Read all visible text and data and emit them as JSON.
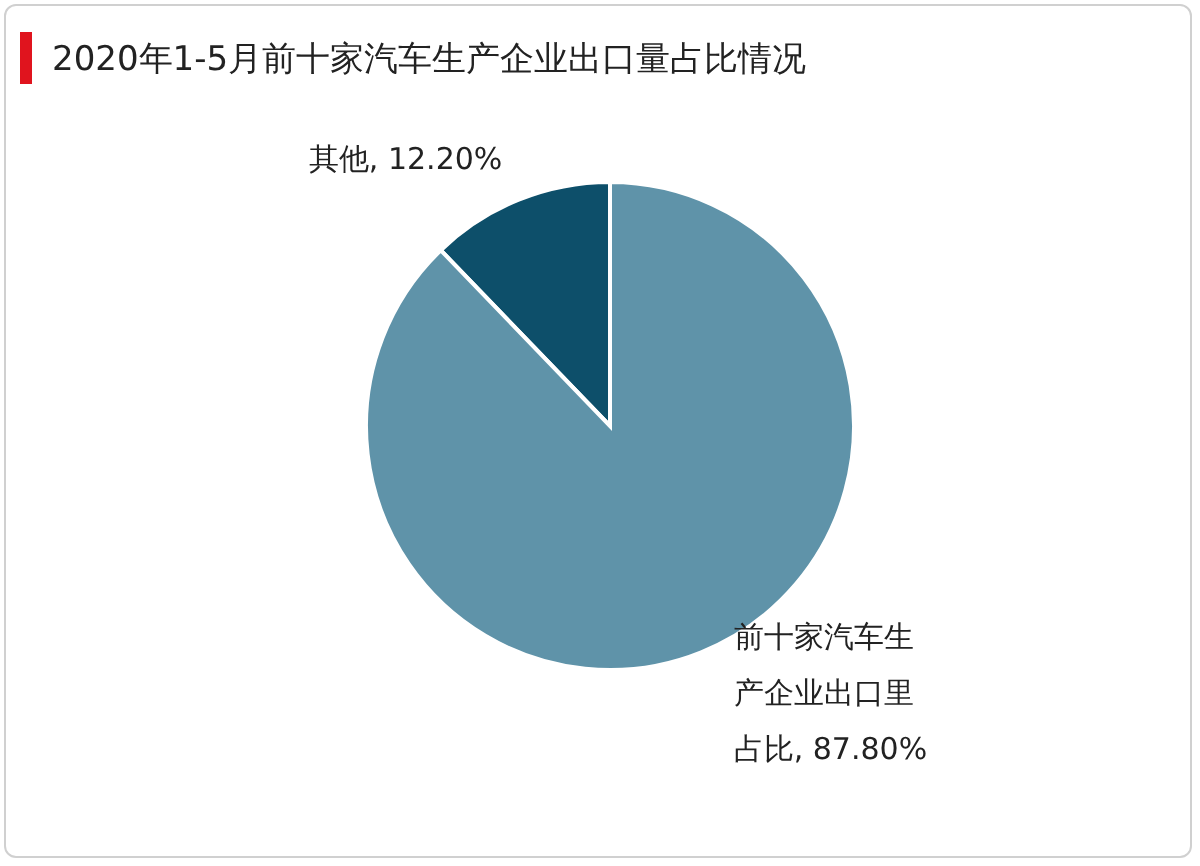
{
  "chart_data": {
    "type": "pie",
    "title": "2020年1-5月前十家汽车生产企业出口量占比情况",
    "categories": [
      "其他",
      "前十家汽车生产企业出口里占比"
    ],
    "values": [
      12.2,
      87.8
    ],
    "colors": [
      "#0d4f6a",
      "#5f93a9"
    ],
    "value_labels": [
      "12.20%",
      "87.80%"
    ],
    "legend": false
  }
}
